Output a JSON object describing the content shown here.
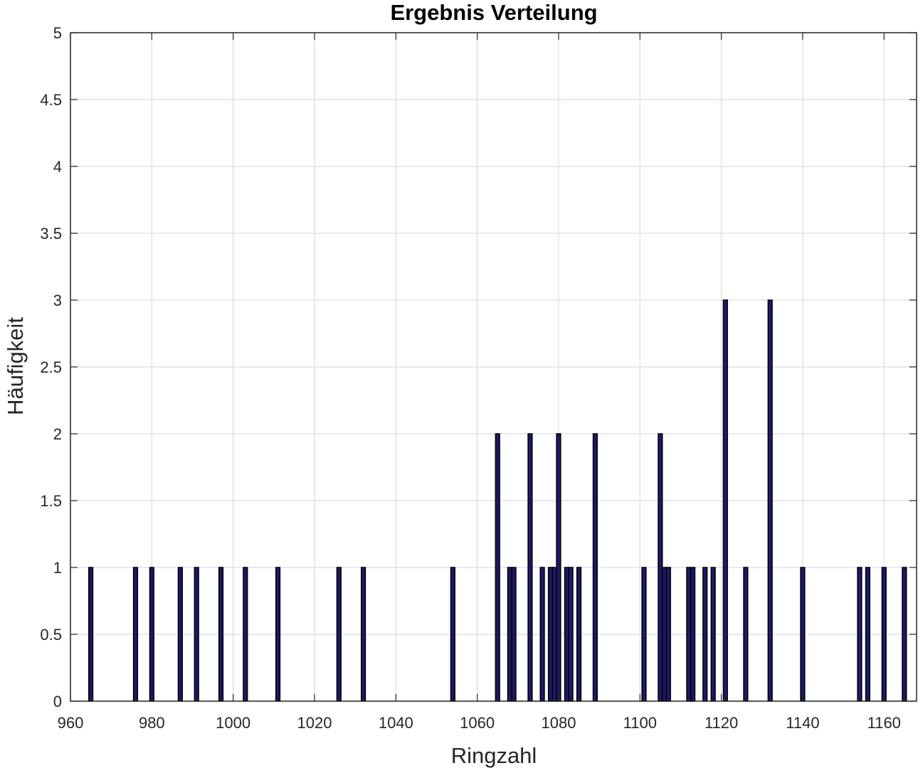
{
  "chart_data": {
    "type": "bar",
    "title": "Ergebnis Verteilung",
    "xlabel": "Ringzahl",
    "ylabel": "Häufigkeit",
    "xlim": [
      960,
      1168
    ],
    "ylim": [
      0,
      5
    ],
    "grid": true,
    "x_ticks": [
      960,
      980,
      1000,
      1020,
      1040,
      1060,
      1080,
      1100,
      1120,
      1140,
      1160
    ],
    "y_ticks": [
      0,
      0.5,
      1,
      1.5,
      2,
      2.5,
      3,
      3.5,
      4,
      4.5,
      5
    ],
    "bar_color": "#1c1a66",
    "bin_width": 1,
    "x": [
      965,
      976,
      980,
      987,
      991,
      997,
      1003,
      1011,
      1026,
      1032,
      1054,
      1065,
      1068,
      1069,
      1073,
      1076,
      1078,
      1079,
      1080,
      1082,
      1083,
      1085,
      1089,
      1101,
      1105,
      1106,
      1107,
      1112,
      1113,
      1116,
      1118,
      1121,
      1126,
      1132,
      1140,
      1154,
      1156,
      1160,
      1165
    ],
    "values": [
      1,
      1,
      1,
      1,
      1,
      1,
      1,
      1,
      1,
      1,
      1,
      2,
      1,
      1,
      2,
      1,
      1,
      1,
      2,
      1,
      1,
      1,
      2,
      1,
      2,
      1,
      1,
      1,
      1,
      1,
      1,
      3,
      1,
      3,
      1,
      1,
      1,
      1,
      1
    ]
  }
}
